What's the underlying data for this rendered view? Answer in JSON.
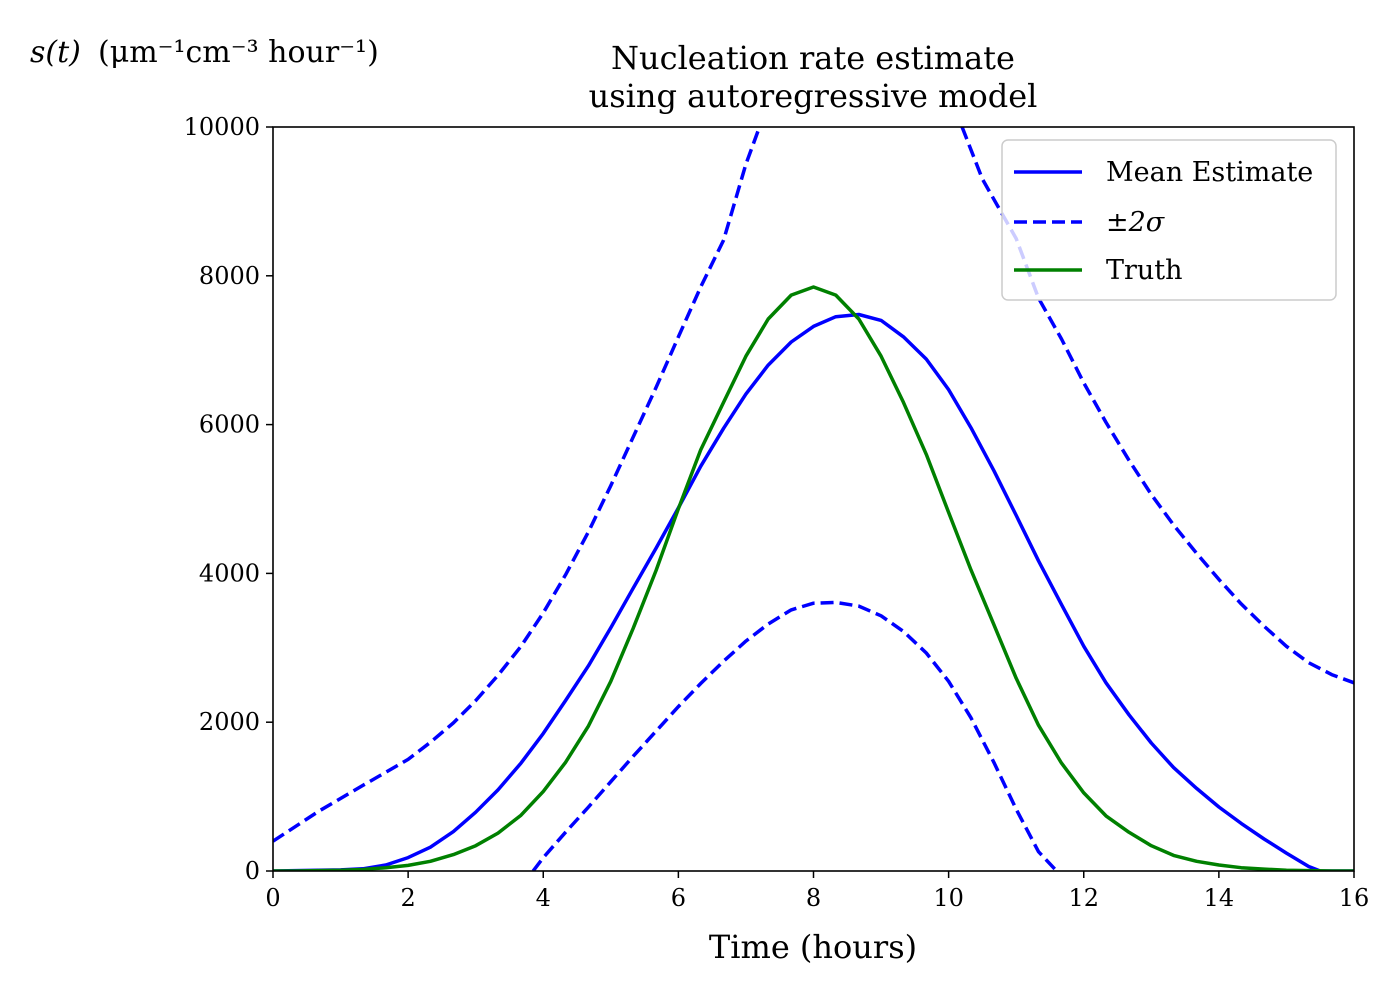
{
  "chart_data": {
    "type": "line",
    "title_lines": [
      "Nucleation rate estimate",
      "using autoregressive model"
    ],
    "xlabel": "Time (hours)",
    "ylabel_main": "s(t)",
    "ylabel_units": "(μm⁻¹cm⁻³ hour⁻¹)",
    "xlim": [
      0,
      16
    ],
    "ylim": [
      0,
      10000
    ],
    "xticks": [
      0,
      2,
      4,
      6,
      8,
      10,
      12,
      14,
      16
    ],
    "yticks": [
      0,
      2000,
      4000,
      6000,
      8000,
      10000
    ],
    "grid": false,
    "legend_position": "top-right",
    "series": [
      {
        "name": "Mean Estimate",
        "color": "#0000ff",
        "style": "solid",
        "x": [
          0,
          0.33,
          0.67,
          1,
          1.33,
          1.67,
          2,
          2.33,
          2.67,
          3,
          3.33,
          3.67,
          4,
          4.33,
          4.67,
          5,
          5.33,
          5.67,
          6,
          6.33,
          6.67,
          7,
          7.33,
          7.67,
          8,
          8.33,
          8.67,
          9,
          9.33,
          9.67,
          10,
          10.33,
          10.67,
          11,
          11.33,
          11.67,
          12,
          12.33,
          12.67,
          13,
          13.33,
          13.67,
          14,
          14.33,
          14.67,
          15,
          15.33,
          15.5,
          16
        ],
        "y": [
          0,
          5,
          10,
          15,
          30,
          80,
          180,
          320,
          530,
          790,
          1090,
          1450,
          1850,
          2290,
          2760,
          3270,
          3800,
          4340,
          4880,
          5440,
          5950,
          6410,
          6800,
          7110,
          7320,
          7450,
          7480,
          7400,
          7180,
          6880,
          6470,
          5960,
          5380,
          4780,
          4170,
          3580,
          3020,
          2530,
          2100,
          1720,
          1390,
          1110,
          860,
          640,
          430,
          240,
          60,
          0,
          0
        ]
      },
      {
        "name": "±2σ",
        "color": "#0000ff",
        "style": "dashed",
        "segments": [
          {
            "x": [
              0,
              0.67,
              1.33,
              2,
              2.33,
              2.67,
              3,
              3.33,
              3.67,
              4,
              4.33,
              4.67,
              5,
              5.33,
              5.67,
              6,
              6.33,
              6.67,
              7,
              7.2
            ],
            "y": [
              400,
              800,
              1150,
              1500,
              1730,
              1990,
              2290,
              2630,
              3020,
              3470,
              3980,
              4560,
              5180,
              5830,
              6500,
              7180,
              7850,
              8480,
              9500,
              10000
            ]
          },
          {
            "x": [
              10.2,
              10.5,
              11,
              11.33,
              11.67,
              12,
              12.33,
              12.67,
              13,
              13.33,
              13.67,
              14,
              14.33,
              14.67,
              15,
              15.33,
              15.67,
              16
            ],
            "y": [
              10000,
              9300,
              8500,
              7700,
              7150,
              6560,
              6030,
              5520,
              5060,
              4650,
              4270,
              3920,
              3590,
              3290,
              3020,
              2800,
              2640,
              2530
            ]
          },
          {
            "x": [
              3.85,
              4,
              4.33,
              4.67,
              5,
              5.33,
              5.67,
              6,
              6.33,
              6.67,
              7,
              7.33,
              7.67,
              8,
              8.33,
              8.67,
              9,
              9.33,
              9.67,
              10,
              10.33,
              10.67,
              11,
              11.33,
              11.6
            ],
            "y": [
              0,
              180,
              520,
              860,
              1200,
              1540,
              1880,
              2210,
              2520,
              2820,
              3090,
              3320,
              3510,
              3600,
              3610,
              3560,
              3430,
              3220,
              2930,
              2550,
              2060,
              1460,
              830,
              260,
              0
            ]
          }
        ]
      },
      {
        "name": "Truth",
        "color": "#008000",
        "style": "solid",
        "x": [
          0,
          0.33,
          0.67,
          1,
          1.33,
          1.67,
          2,
          2.33,
          2.67,
          3,
          3.33,
          3.67,
          4,
          4.33,
          4.67,
          5,
          5.33,
          5.67,
          6,
          6.33,
          6.67,
          7,
          7.33,
          7.67,
          8,
          8.33,
          8.67,
          9,
          9.33,
          9.67,
          10,
          10.33,
          10.67,
          11,
          11.33,
          11.67,
          12,
          12.33,
          12.67,
          13,
          13.33,
          13.67,
          14,
          14.33,
          14.67,
          15,
          15.33,
          15.67,
          16
        ],
        "y": [
          0,
          0,
          5,
          10,
          20,
          45,
          75,
          130,
          220,
          340,
          510,
          750,
          1070,
          1460,
          1950,
          2550,
          3260,
          4040,
          4870,
          5660,
          6300,
          6920,
          7420,
          7740,
          7850,
          7740,
          7420,
          6920,
          6300,
          5600,
          4820,
          4050,
          3310,
          2590,
          1960,
          1450,
          1050,
          740,
          520,
          340,
          210,
          130,
          80,
          45,
          25,
          10,
          5,
          0,
          0
        ]
      }
    ]
  }
}
